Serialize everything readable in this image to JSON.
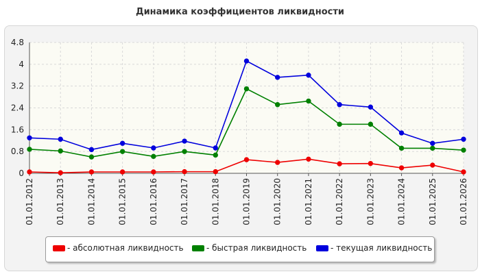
{
  "chart_data": {
    "type": "line",
    "title": "Динамика коэффициентов ликвидности",
    "categories": [
      "01.01.2012",
      "01.01.2013",
      "01.01.2014",
      "01.01.2015",
      "01.01.2016",
      "01.01.2017",
      "01.01.2018",
      "01.01.2019",
      "01.01.2020",
      "01.01.2021",
      "01.01.2022",
      "01.01.2023",
      "01.01.2024",
      "01.01.2025",
      "01.01.2026"
    ],
    "ylim": [
      0,
      4.8
    ],
    "yticks": [
      "0",
      "0.8",
      "1.6",
      "2.4",
      "3.2",
      "4",
      "4.8"
    ],
    "grid": true,
    "legend_position": "bottom",
    "series": [
      {
        "name": "- абсолютная ликвидность",
        "color": "#ee0000",
        "values": [
          0.05,
          0.02,
          0.05,
          0.05,
          0.05,
          0.06,
          0.06,
          0.5,
          0.4,
          0.52,
          0.35,
          0.36,
          0.2,
          0.3,
          0.05
        ]
      },
      {
        "name": "- быстрая ликвидность",
        "color": "#008000",
        "values": [
          0.88,
          0.82,
          0.6,
          0.8,
          0.62,
          0.8,
          0.67,
          3.1,
          2.52,
          2.65,
          1.8,
          1.8,
          0.92,
          0.92,
          0.85
        ]
      },
      {
        "name": "- текущая ликвидность",
        "color": "#0000dd",
        "values": [
          1.3,
          1.25,
          0.87,
          1.1,
          0.93,
          1.18,
          0.93,
          4.12,
          3.52,
          3.6,
          2.52,
          2.43,
          1.48,
          1.1,
          1.25
        ]
      }
    ]
  }
}
